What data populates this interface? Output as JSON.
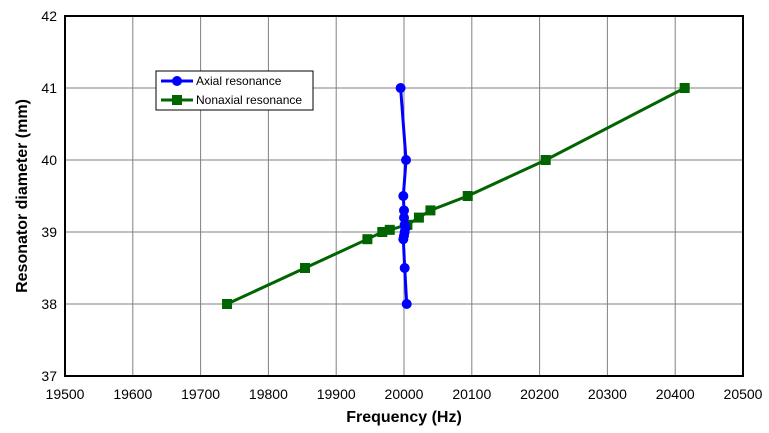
{
  "chart_data": {
    "type": "line",
    "title": "",
    "xlabel": "Frequency (Hz)",
    "ylabel": "Resonator diameter (mm)",
    "xlim": [
      19500,
      20500
    ],
    "ylim": [
      37,
      42
    ],
    "xticks": [
      19500,
      19600,
      19700,
      19800,
      19900,
      20000,
      20100,
      20200,
      20300,
      20400,
      20500
    ],
    "yticks": [
      37,
      38,
      39,
      40,
      41,
      42
    ],
    "grid": true,
    "legend_position": "upper-left",
    "series": [
      {
        "name": "Axial resonance",
        "color": "#0000FF",
        "marker": "circle",
        "points": [
          {
            "x": 19995,
            "y": 41.0
          },
          {
            "x": 20003,
            "y": 40.0
          },
          {
            "x": 19999,
            "y": 39.5
          },
          {
            "x": 20000,
            "y": 39.3
          },
          {
            "x": 20000,
            "y": 39.2
          },
          {
            "x": 20001,
            "y": 39.1
          },
          {
            "x": 20002,
            "y": 39.05
          },
          {
            "x": 20001,
            "y": 39.0
          },
          {
            "x": 20000,
            "y": 38.95
          },
          {
            "x": 19999,
            "y": 38.9
          },
          {
            "x": 20001,
            "y": 38.5
          },
          {
            "x": 20004,
            "y": 38.0
          }
        ]
      },
      {
        "name": "Nonaxial resonance",
        "color": "#006400",
        "marker": "square",
        "points": [
          {
            "x": 19739,
            "y": 38.0
          },
          {
            "x": 19854,
            "y": 38.5
          },
          {
            "x": 19946,
            "y": 38.9
          },
          {
            "x": 19968,
            "y": 39.0
          },
          {
            "x": 19979,
            "y": 39.03
          },
          {
            "x": 20005,
            "y": 39.1
          },
          {
            "x": 20022,
            "y": 39.2
          },
          {
            "x": 20039,
            "y": 39.3
          },
          {
            "x": 20094,
            "y": 39.5
          },
          {
            "x": 20209,
            "y": 40.0
          },
          {
            "x": 20414,
            "y": 41.0
          }
        ]
      }
    ]
  }
}
